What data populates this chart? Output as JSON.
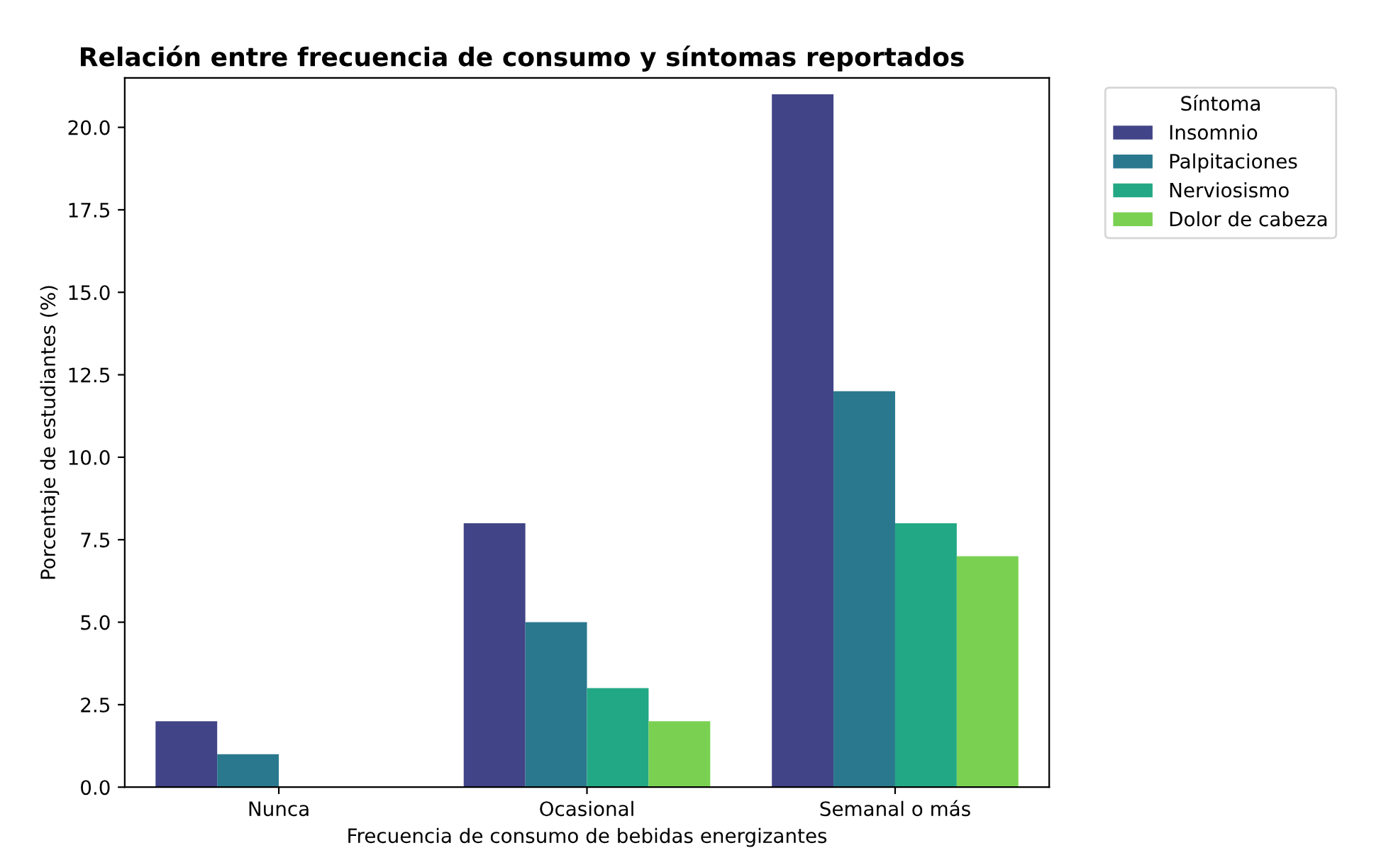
{
  "chart_data": {
    "type": "bar",
    "title": "Relación entre frecuencia de consumo y síntomas reportados",
    "xlabel": "Frecuencia de consumo de bebidas energizantes",
    "ylabel": "Porcentaje de estudiantes (%)",
    "legend_title": "Síntoma",
    "legend": "top right",
    "categories": [
      "Nunca",
      "Ocasional",
      "Semanal o más"
    ],
    "series": [
      {
        "name": "Insomnio",
        "color": "#414487",
        "values": [
          2,
          8,
          21
        ]
      },
      {
        "name": "Palpitaciones",
        "color": "#2a788e",
        "values": [
          1,
          5,
          12
        ]
      },
      {
        "name": "Nerviosismo",
        "color": "#22a884",
        "values": [
          0,
          3,
          8
        ]
      },
      {
        "name": "Dolor de cabeza",
        "color": "#7ad151",
        "values": [
          0,
          2,
          7
        ]
      }
    ],
    "ylim": [
      0,
      21.5
    ],
    "yticks": [
      {
        "value": 0,
        "label": "0.0"
      },
      {
        "value": 2.5,
        "label": "2.5"
      },
      {
        "value": 5,
        "label": "5.0"
      },
      {
        "value": 7.5,
        "label": "7.5"
      },
      {
        "value": 10,
        "label": "10.0"
      },
      {
        "value": 12.5,
        "label": "12.5"
      },
      {
        "value": 15,
        "label": "15.0"
      },
      {
        "value": 17.5,
        "label": "17.5"
      },
      {
        "value": 20,
        "label": "20.0"
      }
    ],
    "grid": false
  }
}
